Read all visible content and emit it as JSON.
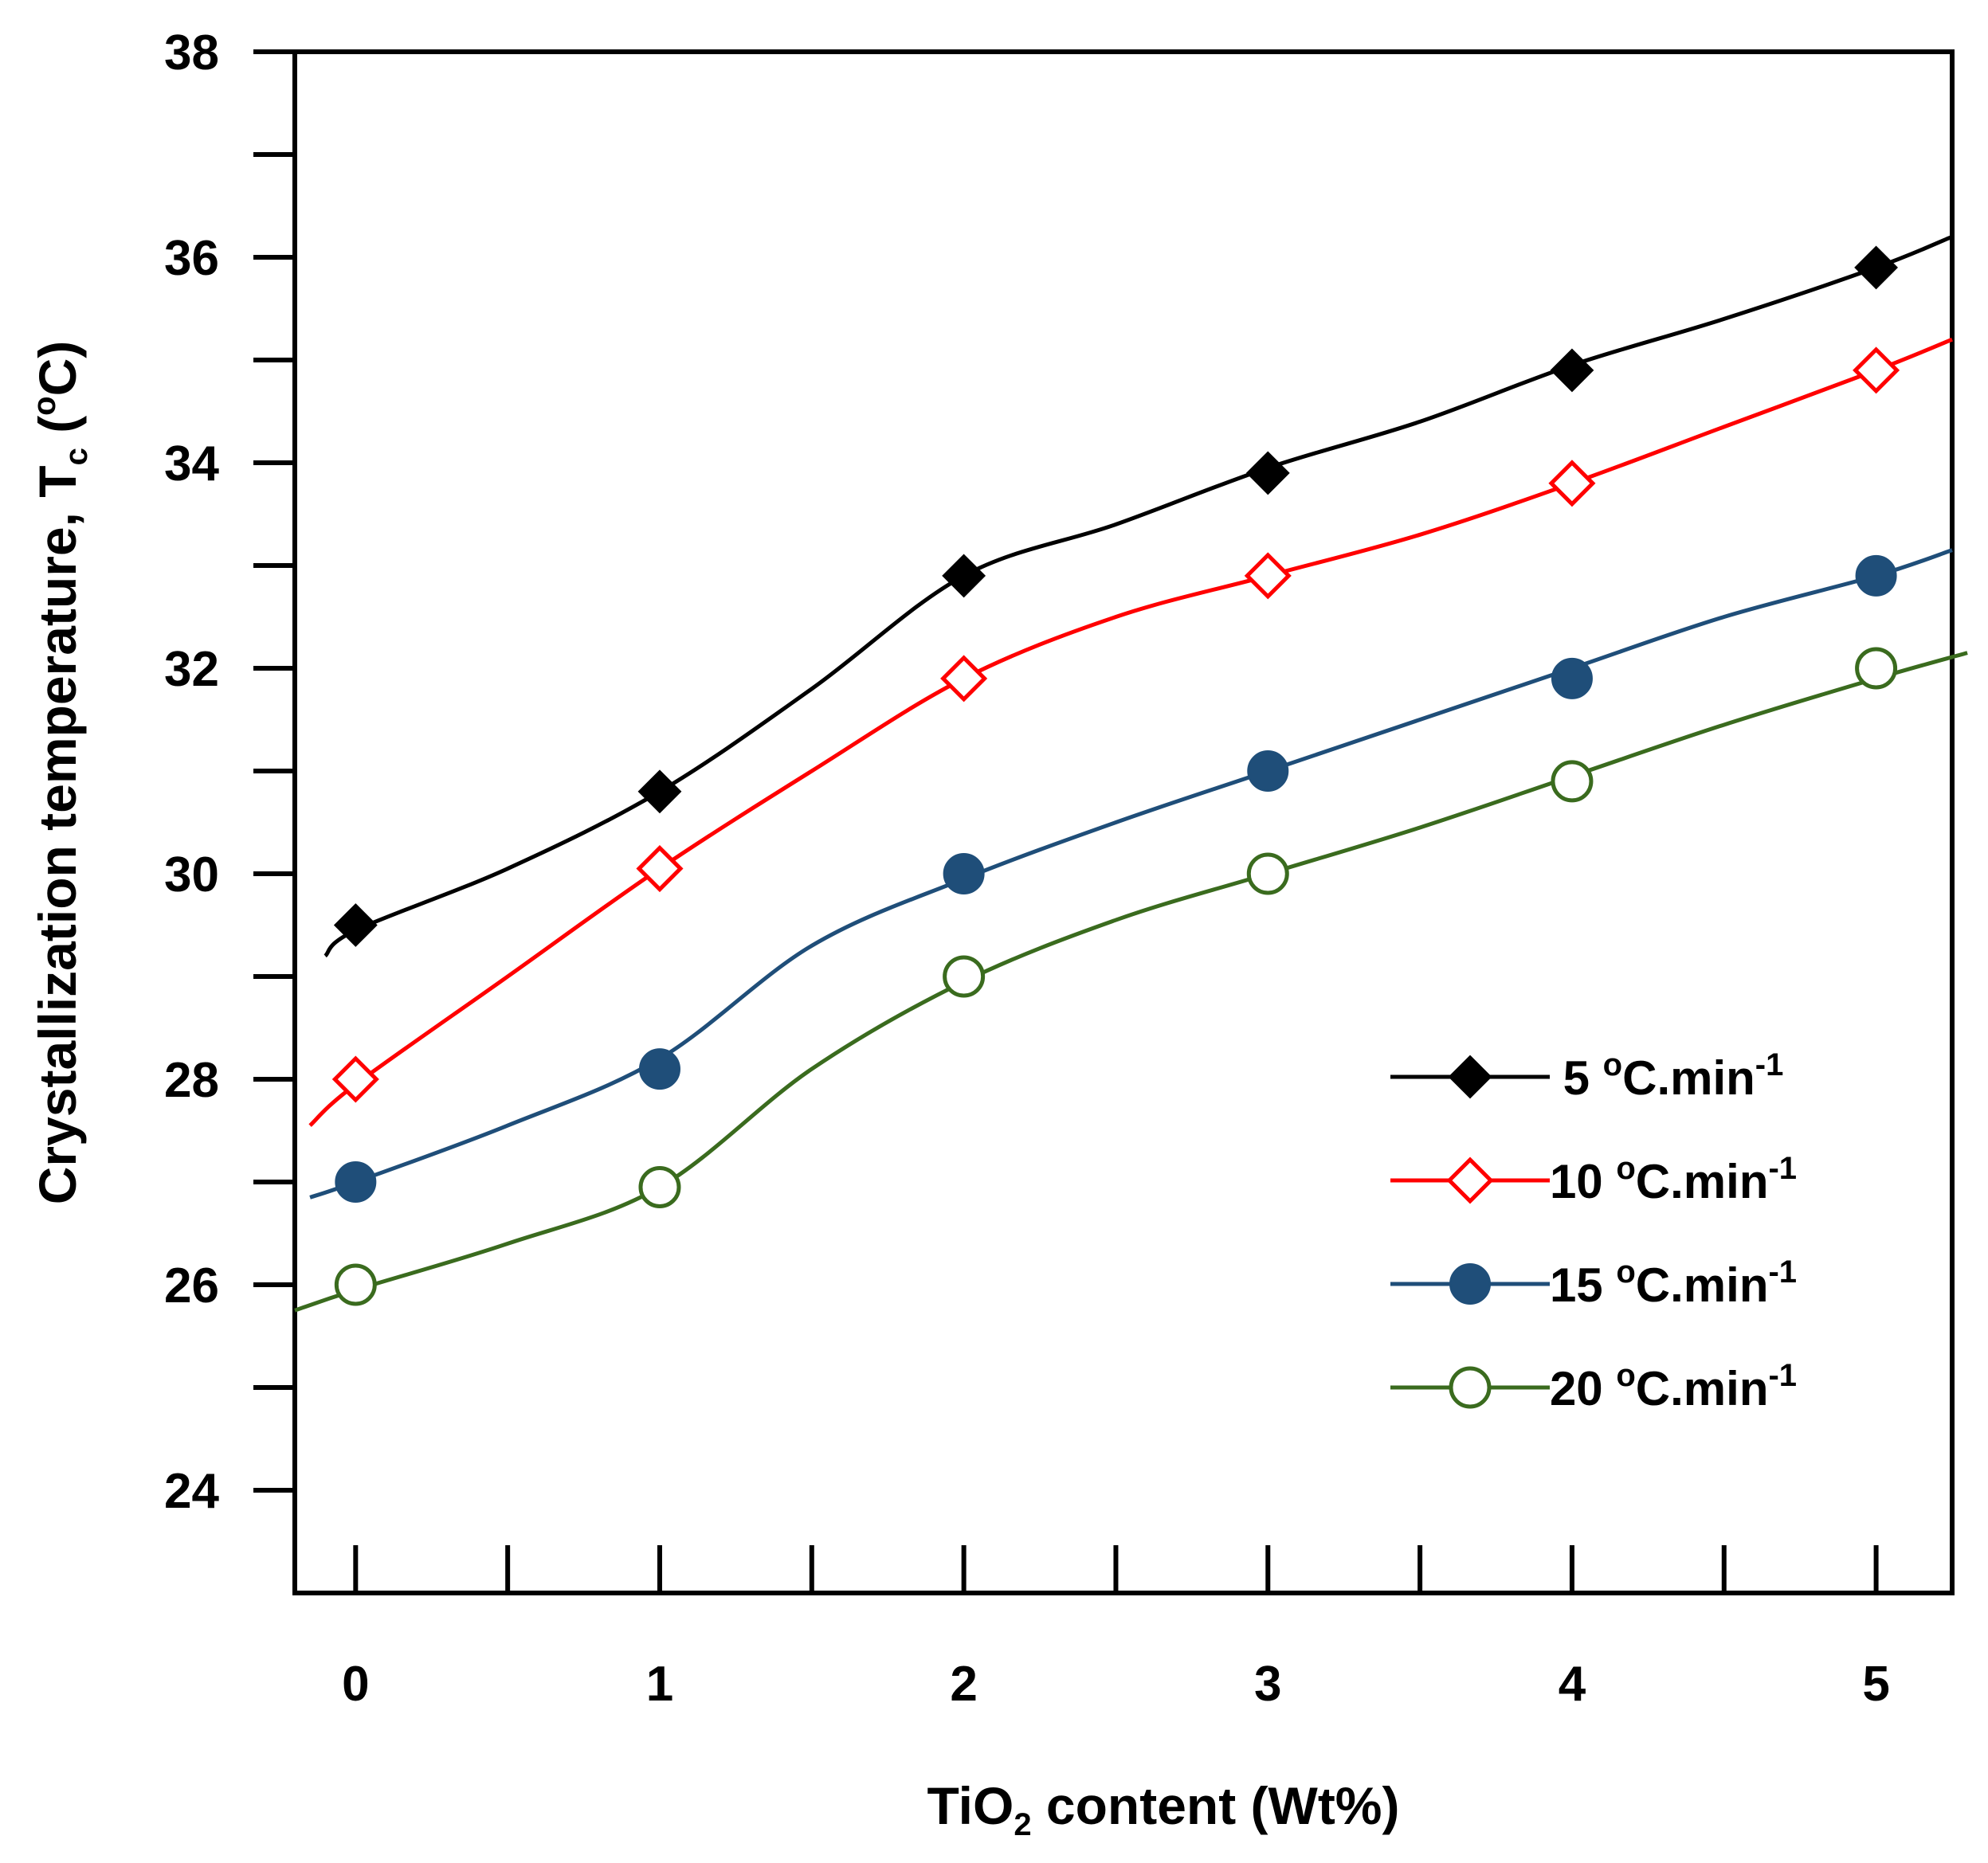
{
  "chart_data": {
    "type": "line",
    "title": "",
    "xlabel": {
      "pre": "TiO",
      "sub": "2",
      "post": " content (Wt%)"
    },
    "ylabel": {
      "pre": "Crystallization temperature, T",
      "sub": "c",
      "post": " (",
      "sup": "o",
      "end": "C)"
    },
    "xlim": [
      -0.2,
      5.25
    ],
    "ylim": [
      23,
      38
    ],
    "x_ticks": [
      0,
      1,
      2,
      3,
      4,
      5
    ],
    "x_tick_labels": [
      "0",
      "1",
      "2",
      "3",
      "4",
      "5"
    ],
    "x_minor_ticks": [
      0.5,
      1.5,
      2.5,
      3.5,
      4.5
    ],
    "y_ticks": [
      24,
      26,
      28,
      30,
      32,
      34,
      36,
      38
    ],
    "y_tick_labels": [
      "24",
      "26",
      "28",
      "30",
      "32",
      "34",
      "36",
      "38"
    ],
    "y_minor_ticks": [
      25,
      27,
      29,
      31,
      33,
      35,
      37
    ],
    "grid": false,
    "legend_position": "right",
    "series": [
      {
        "name": "5 °C.min-1",
        "label": {
          "pre": "5 ",
          "sup": "o",
          "mid": "C.min",
          "sup2": "-1"
        },
        "color": "#000000",
        "marker": "diamond-filled",
        "x": [
          0,
          1,
          2,
          3,
          4,
          5
        ],
        "values": [
          29.5,
          30.8,
          32.9,
          33.9,
          34.9,
          35.9
        ],
        "curve_x": [
          -0.1,
          0,
          0.5,
          1,
          1.5,
          2,
          2.5,
          3,
          3.5,
          4,
          4.5,
          5,
          5.25
        ],
        "curve_y": [
          29.2,
          29.45,
          30.05,
          30.8,
          31.8,
          32.9,
          33.4,
          33.95,
          34.4,
          34.95,
          35.4,
          35.9,
          36.2
        ]
      },
      {
        "name": "10 °C.min-1",
        "label": {
          "pre": "10 ",
          "sup": "o",
          "mid": "C.min",
          "sup2": "-1"
        },
        "color": "#ff0000",
        "marker": "diamond-open",
        "x": [
          0,
          1,
          2,
          3,
          4,
          5
        ],
        "values": [
          28.0,
          30.05,
          31.9,
          32.9,
          33.8,
          34.9
        ],
        "curve_x": [
          -0.15,
          0,
          0.5,
          1,
          1.5,
          2,
          2.5,
          3,
          3.5,
          4,
          4.5,
          5,
          5.25
        ],
        "curve_y": [
          27.55,
          27.95,
          29.0,
          30.05,
          31.0,
          31.9,
          32.5,
          32.9,
          33.3,
          33.8,
          34.35,
          34.9,
          35.2
        ]
      },
      {
        "name": "15 °C.min-1",
        "label": {
          "pre": "15 ",
          "sup": "o",
          "mid": "C.min",
          "sup2": "-1"
        },
        "color": "#1f4e79",
        "marker": "circle-filled",
        "x": [
          0,
          1,
          2,
          3,
          4,
          5
        ],
        "values": [
          27.0,
          28.1,
          30.0,
          31.0,
          31.9,
          32.9
        ],
        "curve_x": [
          -0.15,
          0,
          0.5,
          1,
          1.5,
          2,
          2.5,
          3,
          3.5,
          4,
          4.5,
          5,
          5.25
        ],
        "curve_y": [
          26.85,
          27.0,
          27.55,
          28.2,
          29.3,
          29.95,
          30.5,
          31.0,
          31.5,
          32.0,
          32.5,
          32.9,
          33.15
        ]
      },
      {
        "name": "20 °C.min-1",
        "label": {
          "pre": "20 ",
          "sup": "o",
          "mid": "C.min",
          "sup2": "-1"
        },
        "color": "#3a6b1e",
        "marker": "circle-open",
        "x": [
          0,
          1,
          2,
          3,
          4,
          5
        ],
        "values": [
          26.0,
          26.95,
          29.0,
          30.0,
          30.9,
          32.0
        ],
        "curve_x": [
          -0.2,
          0,
          0.5,
          1,
          1.5,
          2,
          2.5,
          3,
          3.5,
          4,
          4.5,
          5,
          5.3
        ],
        "curve_y": [
          25.75,
          25.95,
          26.4,
          26.95,
          28.1,
          28.95,
          29.55,
          30.0,
          30.45,
          30.95,
          31.45,
          31.9,
          32.15
        ]
      }
    ]
  }
}
